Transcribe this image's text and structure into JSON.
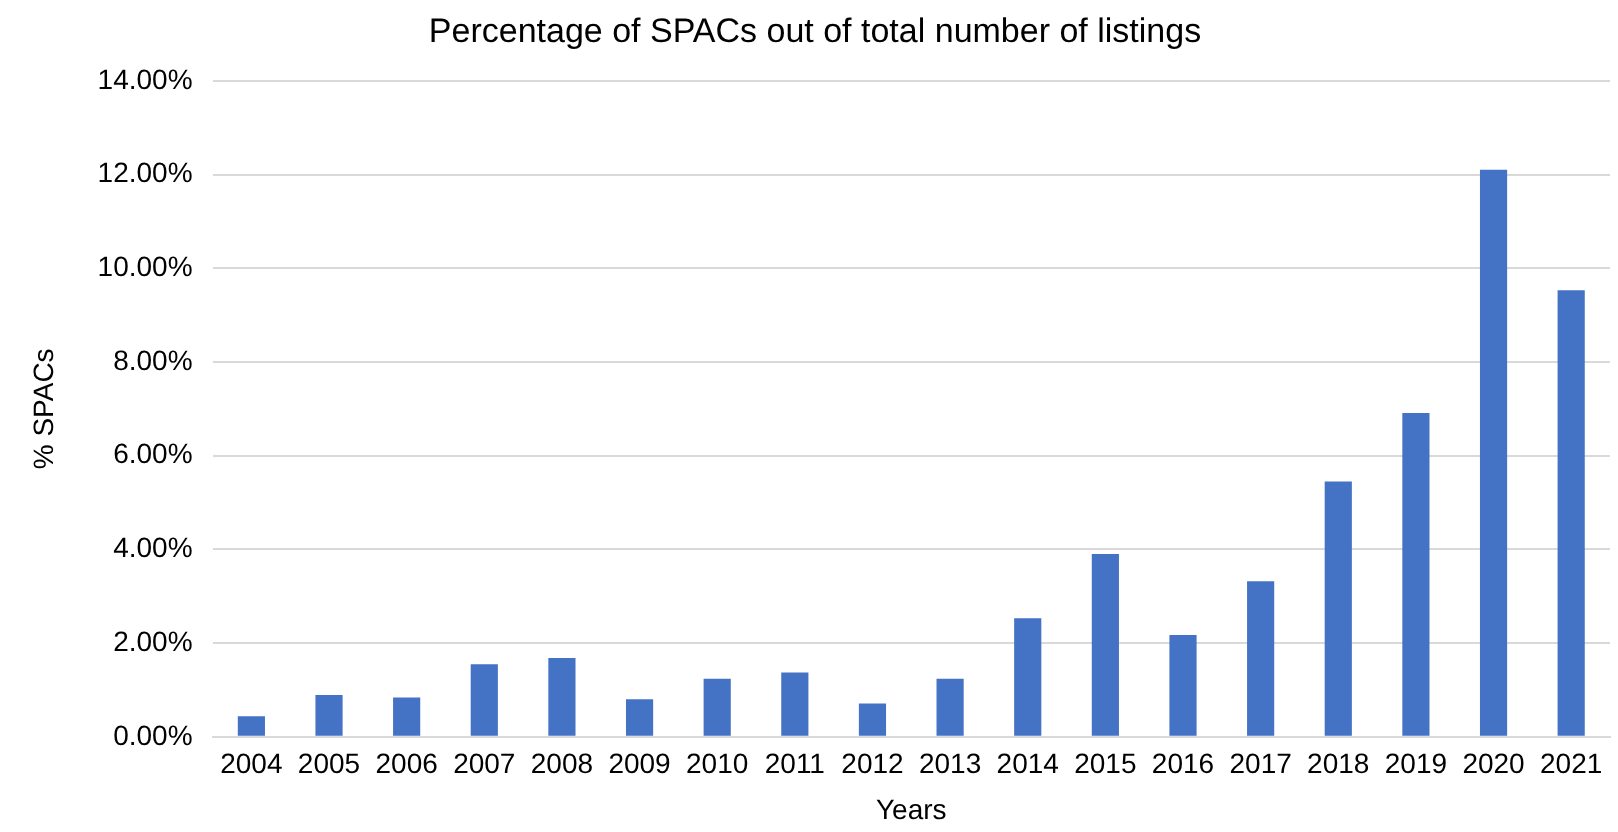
{
  "chart_data": {
    "type": "bar",
    "title": "Percentage of SPACs out of total number of listings",
    "xlabel": "Years",
    "ylabel": "% SPACs",
    "categories": [
      "2004",
      "2005",
      "2006",
      "2007",
      "2008",
      "2009",
      "2010",
      "2011",
      "2012",
      "2013",
      "2014",
      "2015",
      "2016",
      "2017",
      "2018",
      "2019",
      "2020",
      "2021"
    ],
    "values": [
      0.44,
      0.89,
      0.84,
      1.55,
      1.68,
      0.8,
      1.24,
      1.37,
      0.71,
      1.24,
      2.53,
      3.9,
      2.17,
      3.32,
      5.45,
      6.91,
      12.1,
      9.53
    ],
    "color": "#4472c4",
    "ylim": [
      0,
      14
    ],
    "yticks": [
      {
        "value": 0,
        "label": "0.00%"
      },
      {
        "value": 2,
        "label": "2.00%"
      },
      {
        "value": 4,
        "label": "4.00%"
      },
      {
        "value": 6,
        "label": "6.00%"
      },
      {
        "value": 8,
        "label": "8.00%"
      },
      {
        "value": 10,
        "label": "10.00%"
      },
      {
        "value": 12,
        "label": "12.00%"
      },
      {
        "value": 14,
        "label": "14.00%"
      }
    ],
    "grid": "y",
    "legend": false
  }
}
